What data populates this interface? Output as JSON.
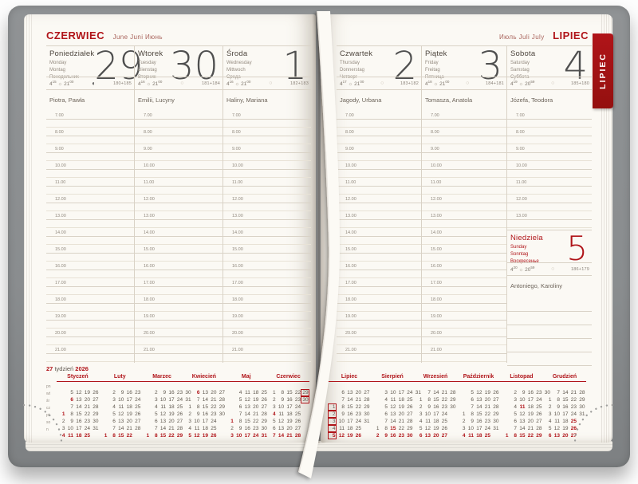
{
  "left_header": {
    "month": "CZERWIEC",
    "other_langs": "June Juni Июнь"
  },
  "right_header": {
    "other_langs": "Июль Juli July",
    "month": "LIPIEC"
  },
  "side_tab": {
    "label": "LIPIEC"
  },
  "week_footer": {
    "week": "27",
    "label": "tydzień",
    "year": "2026"
  },
  "icons": {
    "sun": "☼",
    "moon_marked": "◐",
    "moon_plain": "○"
  },
  "hour_labels_full": [
    "7.00",
    "8.00",
    "9.00",
    "10.00",
    "11.00",
    "12.00",
    "13.00",
    "14.00",
    "15.00",
    "16.00",
    "17.00",
    "18.00",
    "19.00",
    "20.00",
    "21.00"
  ],
  "hour_labels_sat": [
    "7.00",
    "8.00",
    "9.00",
    "10.00",
    "11.00",
    "12.00",
    "13.00"
  ],
  "days": [
    {
      "pl": "Poniedziałek",
      "en": "Monday",
      "de": "Montag",
      "ru": "Понедельник",
      "num": "29",
      "rise": [
        "4",
        "15"
      ],
      "set": [
        "21",
        "00"
      ],
      "moon": "◐",
      "count": "180+185",
      "nameday": "Piotra, Pawła",
      "hours": "full"
    },
    {
      "pl": "Wtorek",
      "en": "Tuesday",
      "de": "Dienstag",
      "ru": "Вторник",
      "num": "30",
      "rise": [
        "4",
        "16"
      ],
      "set": [
        "21",
        "00"
      ],
      "moon": "○",
      "count": "181+184",
      "nameday": "Emilii, Lucyny",
      "hours": "full"
    },
    {
      "pl": "Środa",
      "en": "Wednesday",
      "de": "Mittwoch",
      "ru": "Среда",
      "num": "1",
      "rise": [
        "4",
        "16"
      ],
      "set": [
        "21",
        "00"
      ],
      "moon": "○",
      "count": "182+183",
      "nameday": "Haliny, Mariana",
      "hours": "full"
    },
    {
      "pl": "Czwartek",
      "en": "Thursday",
      "de": "Donnerstag",
      "ru": "Четверг",
      "num": "2",
      "rise": [
        "4",
        "17"
      ],
      "set": [
        "21",
        "00"
      ],
      "moon": "○",
      "count": "183+182",
      "nameday": "Jagody, Urbana",
      "hours": "full"
    },
    {
      "pl": "Piątek",
      "en": "Friday",
      "de": "Freitag",
      "ru": "Пятница",
      "num": "3",
      "rise": [
        "4",
        "18"
      ],
      "set": [
        "21",
        "00"
      ],
      "moon": "○",
      "count": "184+181",
      "nameday": "Tomasza, Anatola",
      "hours": "full"
    },
    {
      "pl": "Sobota",
      "en": "Saturday",
      "de": "Samstag",
      "ru": "Суббота",
      "num": "4",
      "rise": [
        "4",
        "19"
      ],
      "set": [
        "20",
        "59"
      ],
      "moon": "○",
      "count": "185+180",
      "nameday": "Józefa, Teodora",
      "hours": "sat"
    }
  ],
  "sunday": {
    "pl": "Niedziela",
    "en": "Sunday",
    "de": "Sonntag",
    "ru": "Воскресенье",
    "num": "5",
    "rise": [
      "4",
      "20"
    ],
    "set": [
      "20",
      "59"
    ],
    "moon": "○",
    "count": "186+179",
    "nameday": "Antoniego, Karoliny",
    "rule_lines": 5
  },
  "mini": {
    "weekday_labels": [
      "pn",
      "wt",
      "śr",
      "cz",
      "pt",
      "so",
      "n"
    ],
    "left_months": [
      {
        "name": "Styczeń",
        "rows": [
          [
            "",
            "5",
            "12",
            "19",
            "26"
          ],
          [
            "",
            "6",
            "13",
            "20",
            "27"
          ],
          [
            "",
            "7",
            "14",
            "21",
            "28"
          ],
          [
            "1",
            "8",
            "15",
            "22",
            "29"
          ],
          [
            "2",
            "9",
            "16",
            "23",
            "30"
          ],
          [
            "3",
            "10",
            "17",
            "24",
            "31"
          ],
          [
            "4",
            "11",
            "18",
            "25"
          ]
        ],
        "red": [
          "1",
          "6",
          "4",
          "11",
          "18",
          "25"
        ],
        "box": []
      },
      {
        "name": "Luty",
        "rows": [
          [
            "",
            "2",
            "9",
            "16",
            "23"
          ],
          [
            "",
            "3",
            "10",
            "17",
            "24"
          ],
          [
            "",
            "4",
            "11",
            "18",
            "25"
          ],
          [
            "",
            "5",
            "12",
            "19",
            "26"
          ],
          [
            "",
            "6",
            "13",
            "20",
            "27"
          ],
          [
            "",
            "7",
            "14",
            "21",
            "28"
          ],
          [
            "1",
            "8",
            "15",
            "22"
          ]
        ],
        "red": [
          "1",
          "8",
          "15",
          "22"
        ],
        "box": []
      },
      {
        "name": "Marzec",
        "rows": [
          [
            "",
            "2",
            "9",
            "16",
            "23",
            "30"
          ],
          [
            "",
            "3",
            "10",
            "17",
            "24",
            "31"
          ],
          [
            "",
            "4",
            "11",
            "18",
            "25"
          ],
          [
            "",
            "5",
            "12",
            "19",
            "26"
          ],
          [
            "",
            "6",
            "13",
            "20",
            "27"
          ],
          [
            "",
            "7",
            "14",
            "21",
            "28"
          ],
          [
            "1",
            "8",
            "15",
            "22",
            "29"
          ]
        ],
        "red": [
          "1",
          "8",
          "15",
          "22",
          "29"
        ],
        "box": []
      },
      {
        "name": "Kwiecień",
        "rows": [
          [
            "",
            "6",
            "13",
            "20",
            "27"
          ],
          [
            "",
            "7",
            "14",
            "21",
            "28"
          ],
          [
            "1",
            "8",
            "15",
            "22",
            "29"
          ],
          [
            "2",
            "9",
            "16",
            "23",
            "30"
          ],
          [
            "3",
            "10",
            "17",
            "24"
          ],
          [
            "4",
            "11",
            "18",
            "25"
          ],
          [
            "5",
            "12",
            "19",
            "26"
          ]
        ],
        "red": [
          "6",
          "5",
          "12",
          "19",
          "26"
        ],
        "box": []
      },
      {
        "name": "Maj",
        "rows": [
          [
            "",
            "4",
            "11",
            "18",
            "25"
          ],
          [
            "",
            "5",
            "12",
            "19",
            "26"
          ],
          [
            "",
            "6",
            "13",
            "20",
            "27"
          ],
          [
            "",
            "7",
            "14",
            "21",
            "28"
          ],
          [
            "1",
            "8",
            "15",
            "22",
            "29"
          ],
          [
            "2",
            "9",
            "16",
            "23",
            "30"
          ],
          [
            "3",
            "10",
            "17",
            "24",
            "31"
          ]
        ],
        "red": [
          "1",
          "3",
          "10",
          "17",
          "24",
          "31"
        ],
        "box": []
      },
      {
        "name": "Czerwiec",
        "rows": [
          [
            "1",
            "8",
            "15",
            "22",
            "29"
          ],
          [
            "2",
            "9",
            "16",
            "23",
            "30"
          ],
          [
            "3",
            "10",
            "17",
            "24"
          ],
          [
            "4",
            "11",
            "18",
            "25"
          ],
          [
            "5",
            "12",
            "19",
            "26"
          ],
          [
            "6",
            "13",
            "20",
            "27"
          ],
          [
            "7",
            "14",
            "21",
            "28"
          ]
        ],
        "red": [
          "4",
          "7",
          "14",
          "21",
          "28"
        ],
        "box": [
          "29",
          "30"
        ]
      }
    ],
    "right_months": [
      {
        "name": "Lipiec",
        "rows": [
          [
            "",
            "6",
            "13",
            "20",
            "27"
          ],
          [
            "",
            "7",
            "14",
            "21",
            "28"
          ],
          [
            "1",
            "8",
            "15",
            "22",
            "29"
          ],
          [
            "2",
            "9",
            "16",
            "23",
            "30"
          ],
          [
            "3",
            "10",
            "17",
            "24",
            "31"
          ],
          [
            "4",
            "11",
            "18",
            "25"
          ],
          [
            "5",
            "12",
            "19",
            "26"
          ]
        ],
        "red": [
          "5",
          "12",
          "19",
          "26"
        ],
        "box": [
          "1",
          "2",
          "3",
          "4",
          "5"
        ]
      },
      {
        "name": "Sierpień",
        "rows": [
          [
            "",
            "3",
            "10",
            "17",
            "24",
            "31"
          ],
          [
            "",
            "4",
            "11",
            "18",
            "25"
          ],
          [
            "",
            "5",
            "12",
            "19",
            "26"
          ],
          [
            "",
            "6",
            "13",
            "20",
            "27"
          ],
          [
            "",
            "7",
            "14",
            "21",
            "28"
          ],
          [
            "1",
            "8",
            "15",
            "22",
            "29"
          ],
          [
            "2",
            "9",
            "16",
            "23",
            "30"
          ]
        ],
        "red": [
          "15",
          "2",
          "9",
          "16",
          "23",
          "30"
        ],
        "box": []
      },
      {
        "name": "Wrzesień",
        "rows": [
          [
            "",
            "7",
            "14",
            "21",
            "28"
          ],
          [
            "1",
            "8",
            "15",
            "22",
            "29"
          ],
          [
            "2",
            "9",
            "16",
            "23",
            "30"
          ],
          [
            "3",
            "10",
            "17",
            "24"
          ],
          [
            "4",
            "11",
            "18",
            "25"
          ],
          [
            "5",
            "12",
            "19",
            "26"
          ],
          [
            "6",
            "13",
            "20",
            "27"
          ]
        ],
        "red": [
          "6",
          "13",
          "20",
          "27"
        ],
        "box": []
      },
      {
        "name": "Październik",
        "rows": [
          [
            "",
            "5",
            "12",
            "19",
            "26"
          ],
          [
            "",
            "6",
            "13",
            "20",
            "27"
          ],
          [
            "",
            "7",
            "14",
            "21",
            "28"
          ],
          [
            "1",
            "8",
            "15",
            "22",
            "29"
          ],
          [
            "2",
            "9",
            "16",
            "23",
            "30"
          ],
          [
            "3",
            "10",
            "17",
            "24",
            "31"
          ],
          [
            "4",
            "11",
            "18",
            "25"
          ]
        ],
        "red": [
          "4",
          "11",
          "18",
          "25"
        ],
        "box": []
      },
      {
        "name": "Listopad",
        "rows": [
          [
            "",
            "2",
            "9",
            "16",
            "23",
            "30"
          ],
          [
            "",
            "3",
            "10",
            "17",
            "24"
          ],
          [
            "",
            "4",
            "11",
            "18",
            "25"
          ],
          [
            "",
            "5",
            "12",
            "19",
            "26"
          ],
          [
            "",
            "6",
            "13",
            "20",
            "27"
          ],
          [
            "",
            "7",
            "14",
            "21",
            "28"
          ],
          [
            "1",
            "8",
            "15",
            "22",
            "29"
          ]
        ],
        "red": [
          "1",
          "11",
          "8",
          "15",
          "22",
          "29"
        ],
        "box": []
      },
      {
        "name": "Grudzień",
        "rows": [
          [
            "",
            "7",
            "14",
            "21",
            "28"
          ],
          [
            "1",
            "8",
            "15",
            "22",
            "29"
          ],
          [
            "2",
            "9",
            "16",
            "23",
            "30"
          ],
          [
            "3",
            "10",
            "17",
            "24",
            "31"
          ],
          [
            "4",
            "11",
            "18",
            "25"
          ],
          [
            "5",
            "12",
            "19",
            "26"
          ],
          [
            "6",
            "13",
            "20",
            "27"
          ]
        ],
        "red": [
          "25",
          "26",
          "6",
          "13",
          "20",
          "27"
        ],
        "box": []
      }
    ]
  },
  "colors": {
    "accent": "#b01419",
    "cover": "#8b8e90",
    "page": "#fbf9f4",
    "line": "#d9d2c6",
    "line_light": "#e8e2d6",
    "ribbon": "#fcfaf5"
  }
}
